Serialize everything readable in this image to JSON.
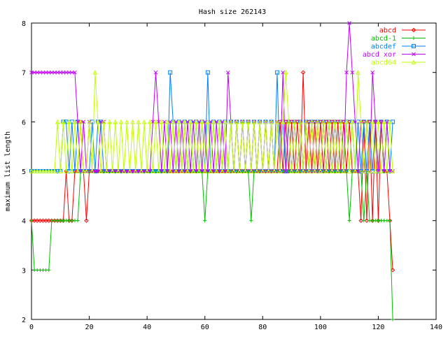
{
  "chart_data": {
    "type": "line",
    "title": "Hash size 262143",
    "xlabel": "",
    "ylabel": "maximum list length",
    "xlim": [
      0,
      140
    ],
    "ylim": [
      2,
      8
    ],
    "xticks": [
      0,
      20,
      40,
      60,
      80,
      100,
      120,
      140
    ],
    "yticks": [
      2,
      3,
      4,
      5,
      6,
      7,
      8
    ],
    "grid": false,
    "legend_position": "top-right",
    "series": [
      {
        "name": "abcd",
        "color": "#ff0000",
        "marker": "diamond",
        "values": [
          4,
          4,
          4,
          4,
          4,
          4,
          4,
          4,
          4,
          4,
          4,
          4,
          5,
          4,
          4,
          5,
          5,
          6,
          5,
          4,
          5,
          5,
          5,
          5,
          5,
          5,
          5,
          5,
          5,
          5,
          5,
          5,
          5,
          5,
          5,
          5,
          5,
          5,
          5,
          5,
          5,
          5,
          5,
          5,
          5,
          5,
          5,
          5,
          5,
          5,
          5,
          5,
          5,
          5,
          5,
          5,
          5,
          5,
          5,
          5,
          5,
          5,
          5,
          5,
          5,
          5,
          5,
          5,
          5,
          5,
          5,
          5,
          5,
          5,
          5,
          5,
          5,
          5,
          5,
          5,
          5,
          5,
          5,
          5,
          5,
          5,
          6,
          5,
          6,
          5,
          6,
          5,
          6,
          5,
          7,
          5,
          6,
          5,
          6,
          5,
          6,
          5,
          6,
          5,
          6,
          5,
          6,
          5,
          6,
          5,
          6,
          5,
          5,
          5,
          4,
          6,
          4,
          6,
          4,
          6,
          4,
          6,
          5,
          5,
          4,
          3
        ]
      },
      {
        "name": "abcd-1",
        "color": "#00c000",
        "marker": "plus",
        "values": [
          4,
          3,
          3,
          3,
          3,
          3,
          3,
          4,
          4,
          4,
          4,
          4,
          4,
          4,
          4,
          4,
          4,
          5,
          5,
          5,
          5,
          5,
          5,
          5,
          5,
          5,
          5,
          5,
          5,
          5,
          5,
          5,
          5,
          5,
          5,
          5,
          5,
          5,
          5,
          5,
          5,
          5,
          5,
          5,
          5,
          5,
          5,
          5,
          5,
          5,
          5,
          5,
          5,
          5,
          5,
          5,
          5,
          5,
          5,
          5,
          4,
          5,
          5,
          5,
          5,
          5,
          5,
          5,
          5,
          5,
          5,
          5,
          5,
          5,
          5,
          5,
          4,
          5,
          5,
          5,
          5,
          5,
          5,
          5,
          5,
          5,
          5,
          5,
          5,
          5,
          5,
          5,
          5,
          5,
          5,
          5,
          5,
          5,
          5,
          5,
          5,
          5,
          5,
          5,
          5,
          5,
          5,
          5,
          5,
          5,
          4,
          5,
          5,
          5,
          5,
          4,
          5,
          4,
          4,
          4,
          4,
          4,
          4,
          4,
          4,
          2
        ]
      },
      {
        "name": "abcdef",
        "color": "#0080ff",
        "marker": "square",
        "values": [
          5,
          5,
          5,
          5,
          5,
          5,
          5,
          5,
          5,
          5,
          5,
          6,
          6,
          5,
          6,
          5,
          6,
          5,
          5,
          5,
          5,
          6,
          5,
          6,
          6,
          5,
          5,
          5,
          5,
          5,
          5,
          5,
          5,
          5,
          5,
          5,
          5,
          5,
          5,
          5,
          5,
          5,
          5,
          5,
          5,
          5,
          5,
          5,
          7,
          6,
          5,
          6,
          5,
          6,
          5,
          6,
          5,
          6,
          5,
          6,
          5,
          7,
          5,
          6,
          5,
          6,
          5,
          6,
          5,
          6,
          5,
          6,
          5,
          6,
          5,
          6,
          5,
          6,
          5,
          6,
          5,
          6,
          5,
          6,
          5,
          7,
          5,
          6,
          5,
          6,
          5,
          6,
          5,
          6,
          5,
          6,
          5,
          6,
          5,
          6,
          5,
          6,
          5,
          6,
          5,
          6,
          5,
          6,
          5,
          6,
          5,
          6,
          5,
          6,
          5,
          6,
          5,
          6,
          5,
          6,
          5,
          6,
          5,
          6,
          5,
          6
        ]
      },
      {
        "name": "abcd xor",
        "color": "#c000ff",
        "marker": "x",
        "values": [
          7,
          7,
          7,
          7,
          7,
          7,
          7,
          7,
          7,
          7,
          7,
          7,
          7,
          7,
          7,
          7,
          6,
          5,
          6,
          5,
          6,
          5,
          5,
          5,
          6,
          6,
          5,
          5,
          5,
          5,
          5,
          5,
          5,
          5,
          5,
          5,
          5,
          5,
          5,
          5,
          5,
          5,
          6,
          7,
          6,
          5,
          6,
          5,
          6,
          5,
          6,
          5,
          6,
          5,
          6,
          5,
          6,
          5,
          6,
          5,
          6,
          5,
          6,
          5,
          6,
          5,
          6,
          5,
          7,
          6,
          5,
          6,
          5,
          6,
          5,
          6,
          5,
          6,
          5,
          6,
          5,
          6,
          5,
          6,
          5,
          6,
          5,
          7,
          5,
          6,
          5,
          6,
          5,
          6,
          5,
          6,
          5,
          6,
          5,
          6,
          5,
          6,
          5,
          6,
          5,
          6,
          5,
          6,
          5,
          7,
          8,
          7,
          6,
          5,
          6,
          5,
          6,
          5,
          7,
          6,
          5,
          6,
          5,
          6,
          5,
          5
        ]
      },
      {
        "name": "abcd64",
        "color": "#c0ff00",
        "marker": "triangle",
        "values": [
          5,
          5,
          5,
          5,
          5,
          5,
          5,
          5,
          5,
          6,
          5,
          6,
          5,
          6,
          5,
          6,
          5,
          6,
          5,
          5,
          6,
          5,
          7,
          6,
          5,
          6,
          5,
          6,
          5,
          6,
          5,
          6,
          5,
          6,
          5,
          6,
          5,
          6,
          5,
          6,
          5,
          6,
          5,
          6,
          5,
          6,
          5,
          6,
          5,
          6,
          5,
          6,
          5,
          6,
          5,
          6,
          5,
          6,
          5,
          6,
          5,
          6,
          5,
          6,
          5,
          6,
          5,
          6,
          5,
          6,
          5,
          6,
          5,
          6,
          5,
          6,
          5,
          6,
          5,
          6,
          5,
          6,
          5,
          6,
          5,
          6,
          5,
          6,
          7,
          6,
          5,
          6,
          5,
          6,
          5,
          6,
          5,
          6,
          5,
          6,
          5,
          6,
          5,
          6,
          5,
          6,
          5,
          6,
          5,
          6,
          5,
          6,
          5,
          7,
          6,
          5,
          6,
          5,
          6,
          5,
          6,
          5,
          6,
          5,
          6,
          5
        ]
      }
    ]
  }
}
